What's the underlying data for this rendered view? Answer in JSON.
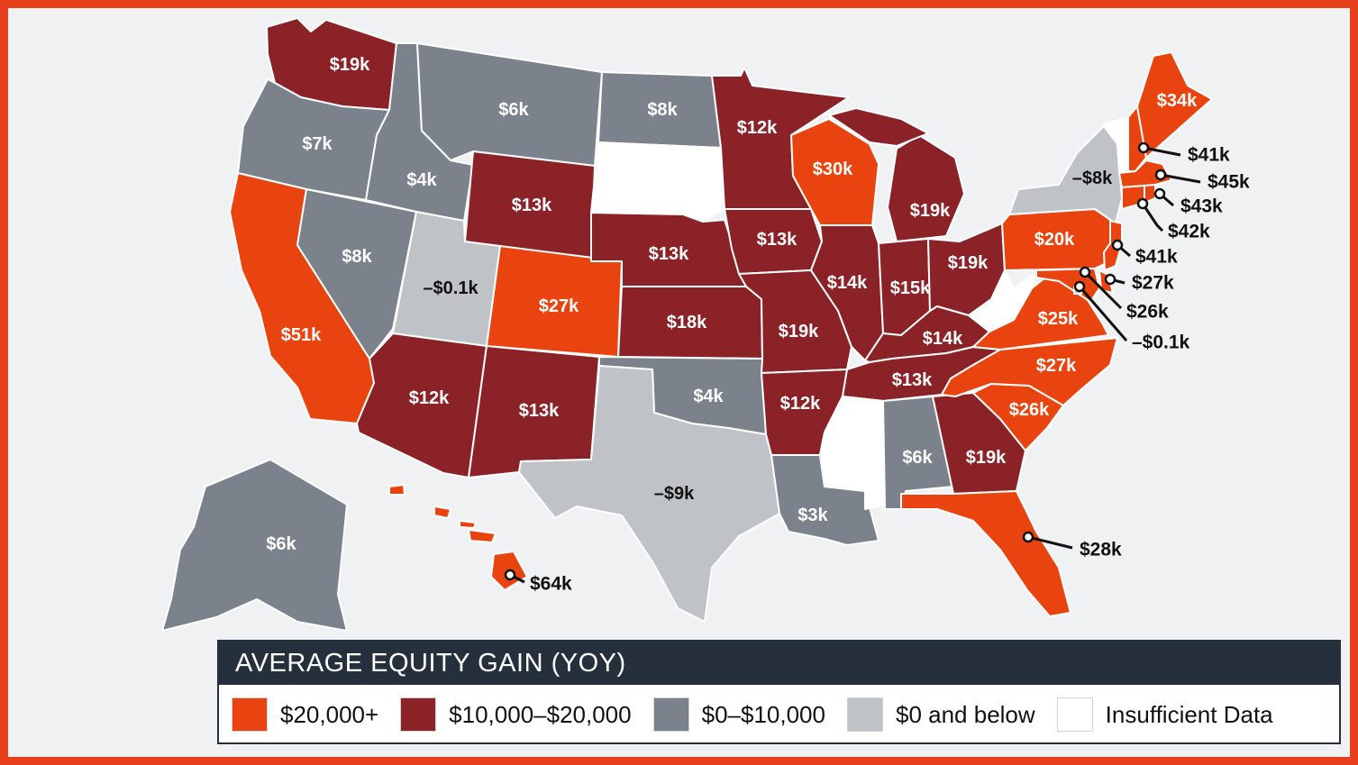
{
  "title": "AVERAGE EQUITY GAIN (YOY)",
  "colors": {
    "orange": "#e9430f",
    "maroon": "#8b2227",
    "gray": "#7b828c",
    "light": "#bfc2c6",
    "white": "#ffffff",
    "navy": "#25303c",
    "background": "#f0f1f3",
    "border": "#e8401c"
  },
  "legend": [
    {
      "label": "$20,000+",
      "color": "#e9430f"
    },
    {
      "label": "$10,000–$20,000",
      "color": "#8b2227"
    },
    {
      "label": "$0–$10,000",
      "color": "#7b828c"
    },
    {
      "label": "$0 and below",
      "color": "#bfc2c6"
    },
    {
      "label": "Insufficient Data",
      "color": "#ffffff"
    }
  ],
  "states": {
    "WA": {
      "value": "$19k",
      "category": "maroon"
    },
    "OR": {
      "value": "$7k",
      "category": "gray"
    },
    "CA": {
      "value": "$51k",
      "category": "orange"
    },
    "NV": {
      "value": "$8k",
      "category": "gray"
    },
    "ID": {
      "value": "$4k",
      "category": "gray"
    },
    "MT": {
      "value": "$6k",
      "category": "gray"
    },
    "WY": {
      "value": "$13k",
      "category": "maroon"
    },
    "UT": {
      "value": "–$0.1k",
      "category": "light"
    },
    "CO": {
      "value": "$27k",
      "category": "orange"
    },
    "AZ": {
      "value": "$12k",
      "category": "maroon"
    },
    "NM": {
      "value": "$13k",
      "category": "maroon"
    },
    "ND": {
      "value": "$8k",
      "category": "gray"
    },
    "SD": {
      "value": "",
      "category": "white"
    },
    "NE": {
      "value": "$13k",
      "category": "maroon"
    },
    "KS": {
      "value": "$18k",
      "category": "maroon"
    },
    "OK": {
      "value": "$4k",
      "category": "gray"
    },
    "TX": {
      "value": "–$9k",
      "category": "light"
    },
    "MN": {
      "value": "$12k",
      "category": "maroon"
    },
    "IA": {
      "value": "$13k",
      "category": "maroon"
    },
    "MO": {
      "value": "$19k",
      "category": "maroon"
    },
    "AR": {
      "value": "$12k",
      "category": "maroon"
    },
    "LA": {
      "value": "$3k",
      "category": "gray"
    },
    "WI": {
      "value": "$30k",
      "category": "orange"
    },
    "IL": {
      "value": "$14k",
      "category": "maroon"
    },
    "MI": {
      "value": "$19k",
      "category": "maroon"
    },
    "IN": {
      "value": "$15k",
      "category": "maroon"
    },
    "OH": {
      "value": "$19k",
      "category": "maroon"
    },
    "KY": {
      "value": "$14k",
      "category": "maroon"
    },
    "TN": {
      "value": "$13k",
      "category": "maroon"
    },
    "MS": {
      "value": "",
      "category": "white"
    },
    "AL": {
      "value": "$6k",
      "category": "gray"
    },
    "GA": {
      "value": "$19k",
      "category": "maroon"
    },
    "FL": {
      "value": "$28k",
      "category": "orange"
    },
    "SC": {
      "value": "$26k",
      "category": "orange"
    },
    "NC": {
      "value": "$27k",
      "category": "orange"
    },
    "VA": {
      "value": "$25k",
      "category": "orange"
    },
    "WV": {
      "value": "",
      "category": "white"
    },
    "PA": {
      "value": "$20k",
      "category": "orange"
    },
    "NY": {
      "value": "–$8k",
      "category": "light"
    },
    "VT": {
      "value": "",
      "category": "white"
    },
    "NH": {
      "value": "$41k",
      "category": "orange"
    },
    "ME": {
      "value": "$34k",
      "category": "orange"
    },
    "MA": {
      "value": "$45k",
      "category": "orange"
    },
    "RI": {
      "value": "$43k",
      "category": "orange"
    },
    "CT": {
      "value": "$42k",
      "category": "orange"
    },
    "NJ": {
      "value": "$41k",
      "category": "orange"
    },
    "DE": {
      "value": "$27k",
      "category": "orange"
    },
    "MD": {
      "value": "$26k",
      "category": "orange"
    },
    "DC": {
      "value": "–$0.1k",
      "category": "light"
    },
    "AK": {
      "value": "$6k",
      "category": "gray"
    },
    "HI": {
      "value": "$64k",
      "category": "orange"
    }
  }
}
